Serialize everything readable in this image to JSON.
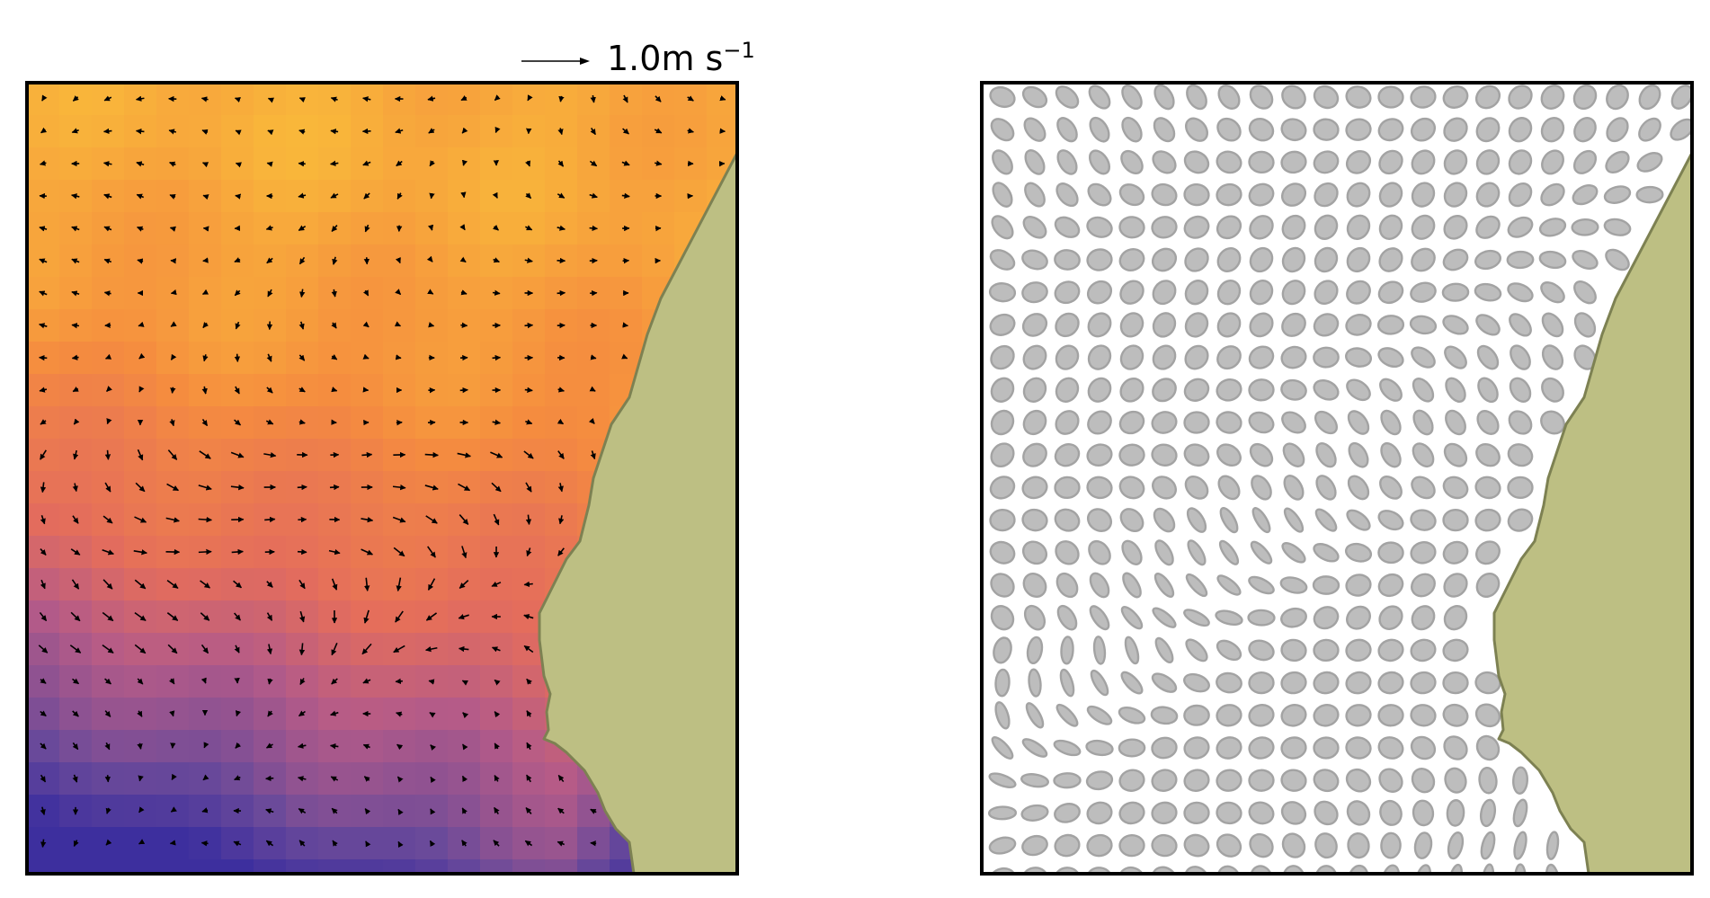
{
  "chart_data": [
    {
      "type": "heatmap",
      "title": "",
      "xlabel": "",
      "ylabel": "",
      "overlay": "velocity-quiver",
      "grid": false,
      "legend": "none",
      "colormap": [
        "#3d2f9e",
        "#6b4a9a",
        "#b55b88",
        "#e46d5c",
        "#f58c3f",
        "#f9b93a"
      ],
      "land_color": "#bdbf83",
      "land_edge_color": "#7d8152",
      "quiver_key": {
        "magnitude": 1.0,
        "label_number": "1.0",
        "label_unit": "m s",
        "label_exponent": "−1"
      }
    },
    {
      "type": "scatter",
      "title": "",
      "xlabel": "",
      "ylabel": "",
      "marker": "ellipse",
      "marker_fill": "#bdbdbd",
      "marker_edge": "#a3a3a3",
      "grid": false,
      "legend": "none",
      "land_color": "#bdbf83",
      "land_edge_color": "#7d8152"
    }
  ]
}
